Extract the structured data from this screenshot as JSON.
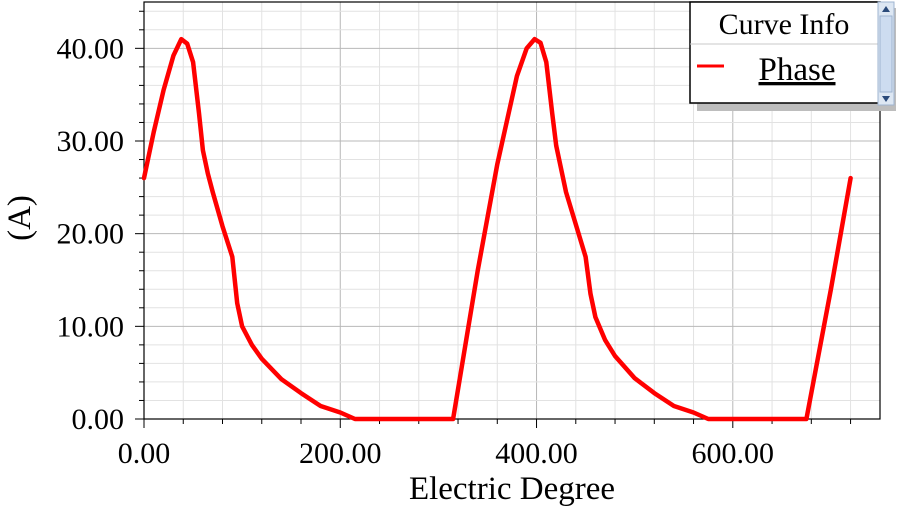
{
  "chart_data": {
    "type": "line",
    "title": "",
    "xlabel": "Electric Degree",
    "ylabel": "(A)",
    "xlim": [
      0,
      750
    ],
    "ylim": [
      0,
      45
    ],
    "x_ticks": [
      "0.00",
      "200.00",
      "400.00",
      "600.00"
    ],
    "x_tick_values": [
      0,
      200,
      400,
      600
    ],
    "y_ticks": [
      "0.00",
      "10.00",
      "20.00",
      "30.00",
      "40.00"
    ],
    "y_tick_values": [
      0,
      10,
      20,
      30,
      40
    ],
    "grid": true,
    "legend": {
      "title": "Curve Info",
      "position": "top-right"
    },
    "series": [
      {
        "name": "Phase",
        "color": "#ff0000",
        "x": [
          0,
          10,
          20,
          30,
          38,
          44,
          50,
          56,
          60,
          65,
          70,
          80,
          90,
          95,
          100,
          110,
          120,
          140,
          160,
          180,
          200,
          215,
          240,
          280,
          315,
          340,
          360,
          380,
          390,
          398,
          404,
          410,
          416,
          420,
          425,
          430,
          440,
          450,
          455,
          460,
          470,
          480,
          500,
          520,
          540,
          560,
          575,
          600,
          640,
          675,
          700,
          720
        ],
        "values": [
          26.0,
          31.0,
          35.5,
          39.2,
          41.0,
          40.5,
          38.5,
          33.0,
          29.0,
          26.5,
          24.5,
          20.8,
          17.5,
          12.5,
          10.0,
          8.0,
          6.5,
          4.3,
          2.8,
          1.4,
          0.7,
          0.0,
          0.0,
          0.0,
          0.0,
          16.0,
          27.5,
          37.0,
          40.0,
          41.0,
          40.6,
          38.5,
          33.0,
          29.5,
          27.0,
          24.5,
          21.0,
          17.5,
          13.5,
          11.0,
          8.5,
          6.8,
          4.4,
          2.8,
          1.4,
          0.7,
          0.0,
          0.0,
          0.0,
          0.0,
          14.0,
          26.0
        ]
      }
    ]
  }
}
